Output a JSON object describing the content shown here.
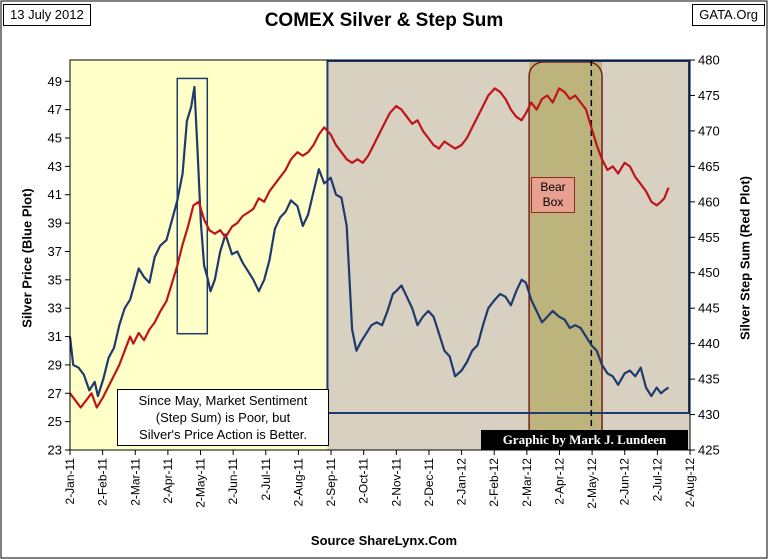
{
  "header": {
    "date": "13 July 2012",
    "title": "COMEX Silver & Step Sum",
    "site": "GATA.Org"
  },
  "footer": {
    "source": "Source ShareLynx.Com"
  },
  "annotations": {
    "note_lines": [
      "Since May, Market Sentiment",
      "(Step Sum) is Poor, but",
      "Silver's Price Action is Better."
    ],
    "credit": "Graphic by Mark J. Lundeen",
    "bear_box_lines": [
      "Bear",
      "Box"
    ]
  },
  "colors": {
    "silver_line": "#1f3a6e",
    "step_sum_line": "#c0141c",
    "early_background": "#ffffc8",
    "shaded_region": "#d8d0c0",
    "bear_region": "#bcb47c",
    "frame": "#1f3a6e"
  },
  "chart_data": {
    "type": "line",
    "title": "COMEX Silver & Step Sum",
    "xlabel": "",
    "y_left_label": "Silver Price (Blue Plot)",
    "y_right_label": "Silver Step Sum (Red Plot)",
    "y_left_ticks": [
      23,
      25,
      27,
      29,
      31,
      33,
      35,
      37,
      39,
      41,
      43,
      45,
      47,
      49
    ],
    "y_right_ticks": [
      425,
      430,
      435,
      440,
      445,
      450,
      455,
      460,
      465,
      470,
      475,
      480
    ],
    "ylim_left": [
      23,
      50.5
    ],
    "ylim_right": [
      425,
      480
    ],
    "x_tick_labels": [
      "2-Jan-11",
      "2-Feb-11",
      "2-Mar-11",
      "2-Apr-11",
      "2-May-11",
      "2-Jun-11",
      "2-Jul-11",
      "2-Aug-11",
      "2-Sep-11",
      "2-Oct-11",
      "2-Nov-11",
      "2-Dec-11",
      "2-Jan-12",
      "2-Feb-12",
      "2-Mar-12",
      "2-Apr-12",
      "2-May-12",
      "2-Jun-12",
      "2-Jul-12",
      "2-Aug-12"
    ],
    "xlim": [
      "2011-01-02",
      "2012-08-02"
    ],
    "grid": false,
    "regions": [
      {
        "from": "2011-01-02",
        "to": "2011-08-30",
        "fill": "#ffffc8"
      },
      {
        "from": "2011-08-30",
        "to": "2012-08-02",
        "fill": "#d8d0c0"
      },
      {
        "from": "2012-03-05",
        "to": "2012-05-12",
        "fill": "#bcb47c"
      }
    ],
    "boxes": [
      {
        "from": "2011-04-12",
        "to": "2011-05-10",
        "y_left": [
          31.2,
          49.2
        ]
      }
    ],
    "vlines": [
      {
        "date": "2012-05-02",
        "style": "dashed"
      }
    ],
    "series": [
      {
        "axis": "left",
        "color": "#1f3a6e",
        "points": [
          [
            "2011-01-02",
            31.0
          ],
          [
            "2011-01-05",
            29.0
          ],
          [
            "2011-01-10",
            28.8
          ],
          [
            "2011-01-15",
            28.3
          ],
          [
            "2011-01-20",
            27.2
          ],
          [
            "2011-01-25",
            27.8
          ],
          [
            "2011-01-28",
            26.8
          ],
          [
            "2011-02-02",
            28.0
          ],
          [
            "2011-02-07",
            29.5
          ],
          [
            "2011-02-12",
            30.2
          ],
          [
            "2011-02-17",
            31.8
          ],
          [
            "2011-02-22",
            33.0
          ],
          [
            "2011-02-27",
            33.6
          ],
          [
            "2011-03-02",
            34.4
          ],
          [
            "2011-03-07",
            35.8
          ],
          [
            "2011-03-12",
            35.2
          ],
          [
            "2011-03-17",
            34.8
          ],
          [
            "2011-03-22",
            36.6
          ],
          [
            "2011-03-27",
            37.4
          ],
          [
            "2011-04-02",
            37.8
          ],
          [
            "2011-04-07",
            39.2
          ],
          [
            "2011-04-12",
            40.6
          ],
          [
            "2011-04-17",
            42.5
          ],
          [
            "2011-04-21",
            46.2
          ],
          [
            "2011-04-25",
            47.2
          ],
          [
            "2011-04-28",
            48.6
          ],
          [
            "2011-05-01",
            44.0
          ],
          [
            "2011-05-04",
            39.0
          ],
          [
            "2011-05-07",
            36.0
          ],
          [
            "2011-05-10",
            35.2
          ],
          [
            "2011-05-13",
            34.2
          ],
          [
            "2011-05-17",
            35.0
          ],
          [
            "2011-05-22",
            37.0
          ],
          [
            "2011-05-27",
            38.2
          ],
          [
            "2011-06-02",
            36.8
          ],
          [
            "2011-06-07",
            37.0
          ],
          [
            "2011-06-12",
            36.2
          ],
          [
            "2011-06-17",
            35.6
          ],
          [
            "2011-06-22",
            35.0
          ],
          [
            "2011-06-27",
            34.2
          ],
          [
            "2011-07-02",
            35.0
          ],
          [
            "2011-07-07",
            36.4
          ],
          [
            "2011-07-12",
            38.6
          ],
          [
            "2011-07-17",
            39.4
          ],
          [
            "2011-07-22",
            39.8
          ],
          [
            "2011-07-27",
            40.6
          ],
          [
            "2011-08-02",
            40.2
          ],
          [
            "2011-08-07",
            38.8
          ],
          [
            "2011-08-12",
            39.6
          ],
          [
            "2011-08-17",
            41.2
          ],
          [
            "2011-08-22",
            42.8
          ],
          [
            "2011-08-27",
            41.8
          ],
          [
            "2011-09-02",
            42.2
          ],
          [
            "2011-09-07",
            41.0
          ],
          [
            "2011-09-12",
            40.8
          ],
          [
            "2011-09-17",
            38.8
          ],
          [
            "2011-09-22",
            31.5
          ],
          [
            "2011-09-26",
            30.0
          ],
          [
            "2011-09-30",
            30.6
          ],
          [
            "2011-10-05",
            31.2
          ],
          [
            "2011-10-10",
            31.8
          ],
          [
            "2011-10-15",
            32.0
          ],
          [
            "2011-10-20",
            31.8
          ],
          [
            "2011-10-25",
            32.8
          ],
          [
            "2011-10-30",
            34.0
          ],
          [
            "2011-11-02",
            34.2
          ],
          [
            "2011-11-07",
            34.6
          ],
          [
            "2011-11-12",
            33.8
          ],
          [
            "2011-11-17",
            33.0
          ],
          [
            "2011-11-22",
            31.8
          ],
          [
            "2011-11-27",
            32.4
          ],
          [
            "2011-12-02",
            32.8
          ],
          [
            "2011-12-07",
            32.4
          ],
          [
            "2011-12-12",
            31.2
          ],
          [
            "2011-12-17",
            30.0
          ],
          [
            "2011-12-22",
            29.6
          ],
          [
            "2011-12-27",
            28.2
          ],
          [
            "2012-01-02",
            28.6
          ],
          [
            "2012-01-07",
            29.2
          ],
          [
            "2012-01-12",
            30.0
          ],
          [
            "2012-01-17",
            30.4
          ],
          [
            "2012-01-22",
            31.8
          ],
          [
            "2012-01-27",
            33.0
          ],
          [
            "2012-02-02",
            33.6
          ],
          [
            "2012-02-07",
            34.0
          ],
          [
            "2012-02-12",
            33.8
          ],
          [
            "2012-02-17",
            33.2
          ],
          [
            "2012-02-22",
            34.2
          ],
          [
            "2012-02-27",
            35.0
          ],
          [
            "2012-03-02",
            34.8
          ],
          [
            "2012-03-07",
            33.6
          ],
          [
            "2012-03-12",
            32.8
          ],
          [
            "2012-03-17",
            32.0
          ],
          [
            "2012-03-22",
            32.4
          ],
          [
            "2012-03-27",
            32.8
          ],
          [
            "2012-04-02",
            32.4
          ],
          [
            "2012-04-07",
            32.2
          ],
          [
            "2012-04-12",
            31.6
          ],
          [
            "2012-04-17",
            31.8
          ],
          [
            "2012-04-22",
            31.6
          ],
          [
            "2012-04-27",
            31.0
          ],
          [
            "2012-05-02",
            30.4
          ],
          [
            "2012-05-07",
            30.0
          ],
          [
            "2012-05-12",
            29.0
          ],
          [
            "2012-05-17",
            28.4
          ],
          [
            "2012-05-22",
            28.2
          ],
          [
            "2012-05-27",
            27.6
          ],
          [
            "2012-06-02",
            28.4
          ],
          [
            "2012-06-07",
            28.6
          ],
          [
            "2012-06-12",
            28.2
          ],
          [
            "2012-06-17",
            28.8
          ],
          [
            "2012-06-22",
            27.4
          ],
          [
            "2012-06-27",
            26.8
          ],
          [
            "2012-07-02",
            27.4
          ],
          [
            "2012-07-06",
            27.0
          ],
          [
            "2012-07-09",
            27.2
          ],
          [
            "2012-07-13",
            27.4
          ]
        ]
      },
      {
        "axis": "right",
        "color": "#c0141c",
        "points": [
          [
            "2011-01-02",
            433.0
          ],
          [
            "2011-01-07",
            432.0
          ],
          [
            "2011-01-12",
            431.0
          ],
          [
            "2011-01-17",
            432.0
          ],
          [
            "2011-01-22",
            433.0
          ],
          [
            "2011-01-27",
            431.0
          ],
          [
            "2011-02-02",
            432.5
          ],
          [
            "2011-02-07",
            434.0
          ],
          [
            "2011-02-12",
            435.5
          ],
          [
            "2011-02-17",
            437.0
          ],
          [
            "2011-02-22",
            439.0
          ],
          [
            "2011-02-27",
            441.0
          ],
          [
            "2011-03-02",
            440.0
          ],
          [
            "2011-03-07",
            441.5
          ],
          [
            "2011-03-12",
            440.5
          ],
          [
            "2011-03-17",
            442.0
          ],
          [
            "2011-03-22",
            443.0
          ],
          [
            "2011-03-27",
            444.5
          ],
          [
            "2011-04-02",
            446.0
          ],
          [
            "2011-04-07",
            448.5
          ],
          [
            "2011-04-12",
            451.0
          ],
          [
            "2011-04-17",
            454.0
          ],
          [
            "2011-04-22",
            456.5
          ],
          [
            "2011-04-27",
            459.5
          ],
          [
            "2011-05-02",
            460.0
          ],
          [
            "2011-05-07",
            457.5
          ],
          [
            "2011-05-12",
            456.0
          ],
          [
            "2011-05-17",
            455.5
          ],
          [
            "2011-05-22",
            456.0
          ],
          [
            "2011-05-27",
            455.0
          ],
          [
            "2011-06-02",
            456.5
          ],
          [
            "2011-06-07",
            457.0
          ],
          [
            "2011-06-12",
            458.0
          ],
          [
            "2011-06-17",
            458.5
          ],
          [
            "2011-06-22",
            459.0
          ],
          [
            "2011-06-27",
            460.5
          ],
          [
            "2011-07-02",
            460.0
          ],
          [
            "2011-07-07",
            461.5
          ],
          [
            "2011-07-12",
            462.5
          ],
          [
            "2011-07-17",
            463.5
          ],
          [
            "2011-07-22",
            464.5
          ],
          [
            "2011-07-27",
            466.0
          ],
          [
            "2011-08-02",
            467.0
          ],
          [
            "2011-08-07",
            466.5
          ],
          [
            "2011-08-12",
            467.0
          ],
          [
            "2011-08-17",
            468.0
          ],
          [
            "2011-08-22",
            469.5
          ],
          [
            "2011-08-27",
            470.5
          ],
          [
            "2011-09-02",
            469.5
          ],
          [
            "2011-09-07",
            468.0
          ],
          [
            "2011-09-12",
            467.0
          ],
          [
            "2011-09-17",
            466.0
          ],
          [
            "2011-09-22",
            465.5
          ],
          [
            "2011-09-27",
            466.0
          ],
          [
            "2011-10-02",
            465.5
          ],
          [
            "2011-10-07",
            466.5
          ],
          [
            "2011-10-12",
            468.0
          ],
          [
            "2011-10-17",
            469.5
          ],
          [
            "2011-10-22",
            471.0
          ],
          [
            "2011-10-27",
            472.5
          ],
          [
            "2011-11-02",
            473.5
          ],
          [
            "2011-11-07",
            473.0
          ],
          [
            "2011-11-12",
            472.0
          ],
          [
            "2011-11-17",
            471.0
          ],
          [
            "2011-11-22",
            471.5
          ],
          [
            "2011-11-27",
            470.0
          ],
          [
            "2011-12-02",
            469.0
          ],
          [
            "2011-12-07",
            468.0
          ],
          [
            "2011-12-12",
            467.5
          ],
          [
            "2011-12-17",
            468.5
          ],
          [
            "2011-12-22",
            468.0
          ],
          [
            "2011-12-27",
            467.5
          ],
          [
            "2012-01-02",
            468.0
          ],
          [
            "2012-01-07",
            469.0
          ],
          [
            "2012-01-12",
            470.5
          ],
          [
            "2012-01-17",
            472.0
          ],
          [
            "2012-01-22",
            473.5
          ],
          [
            "2012-01-27",
            475.0
          ],
          [
            "2012-02-02",
            476.0
          ],
          [
            "2012-02-07",
            475.5
          ],
          [
            "2012-02-12",
            474.5
          ],
          [
            "2012-02-17",
            473.0
          ],
          [
            "2012-02-22",
            472.0
          ],
          [
            "2012-02-27",
            471.5
          ],
          [
            "2012-03-02",
            472.5
          ],
          [
            "2012-03-07",
            474.0
          ],
          [
            "2012-03-12",
            473.0
          ],
          [
            "2012-03-17",
            474.5
          ],
          [
            "2012-03-22",
            475.0
          ],
          [
            "2012-03-27",
            474.0
          ],
          [
            "2012-04-02",
            476.0
          ],
          [
            "2012-04-07",
            475.5
          ],
          [
            "2012-04-12",
            474.5
          ],
          [
            "2012-04-17",
            475.0
          ],
          [
            "2012-04-22",
            474.0
          ],
          [
            "2012-04-27",
            473.0
          ],
          [
            "2012-05-02",
            470.5
          ],
          [
            "2012-05-07",
            468.0
          ],
          [
            "2012-05-12",
            466.0
          ],
          [
            "2012-05-17",
            464.5
          ],
          [
            "2012-05-22",
            465.0
          ],
          [
            "2012-05-27",
            464.0
          ],
          [
            "2012-06-02",
            465.5
          ],
          [
            "2012-06-07",
            465.0
          ],
          [
            "2012-06-12",
            463.5
          ],
          [
            "2012-06-17",
            462.5
          ],
          [
            "2012-06-22",
            461.5
          ],
          [
            "2012-06-27",
            460.0
          ],
          [
            "2012-07-02",
            459.5
          ],
          [
            "2012-07-06",
            460.0
          ],
          [
            "2012-07-09",
            460.5
          ],
          [
            "2012-07-13",
            462.0
          ]
        ]
      }
    ]
  }
}
